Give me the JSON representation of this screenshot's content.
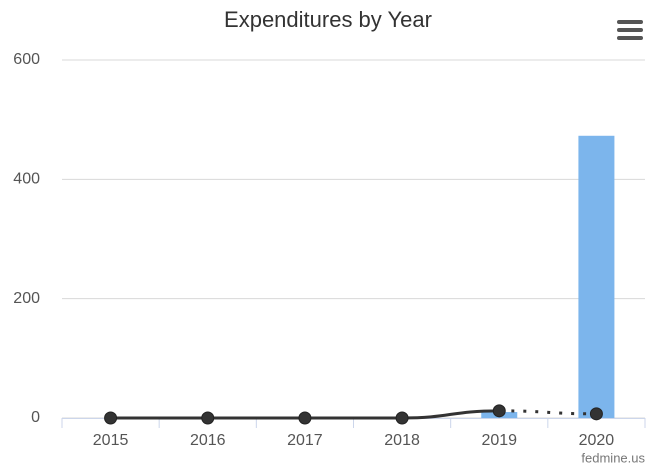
{
  "chart_data": {
    "type": "combo",
    "title": "Expenditures by Year",
    "credits": "fedmine.us",
    "categories": [
      "2015",
      "2016",
      "2017",
      "2018",
      "2019",
      "2020"
    ],
    "series": [
      {
        "type": "bar",
        "color": "#7cb5ec",
        "values": [
          0,
          0,
          0,
          0,
          10,
          473
        ]
      },
      {
        "type": "line",
        "color": "#333333",
        "values": [
          0,
          0,
          0,
          0,
          12,
          7
        ],
        "dashed_last_segment": true
      }
    ],
    "ylim": [
      0,
      600
    ],
    "yticks": [
      0,
      200,
      400,
      600
    ],
    "grid": true
  }
}
